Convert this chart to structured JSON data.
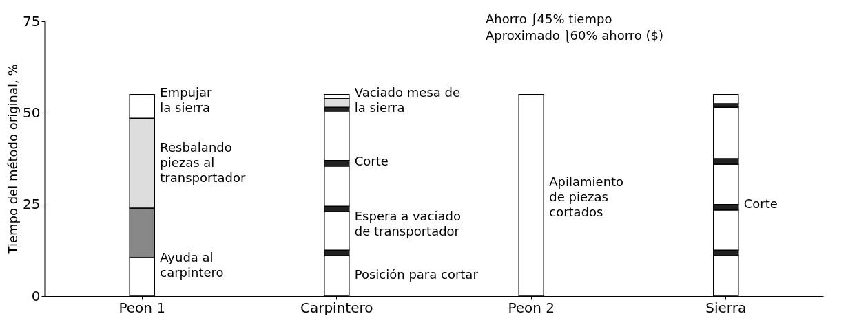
{
  "chart_data": {
    "type": "bar",
    "stacked": true,
    "ylabel": "Tiempo del método original, %",
    "categories": [
      "Peon 1",
      "Carpintero",
      "Peon 2",
      "Sierra"
    ],
    "ylim": [
      0,
      75
    ],
    "yticks": [
      0,
      25,
      50,
      75
    ],
    "series": [
      {
        "colors": [
          "#ffffff",
          "#ffffff",
          "#ffffff",
          "#ffffff"
        ],
        "values": [
          10.5,
          11,
          55,
          11
        ]
      },
      {
        "colors": [
          "#888888",
          "#222222",
          "#ffffff",
          "#222222"
        ],
        "values": [
          13.5,
          1.5,
          null,
          1.5
        ]
      },
      {
        "colors": [
          "#dddddd",
          "#ffffff",
          "#ffffff",
          "#ffffff"
        ],
        "values": [
          24.5,
          10.5,
          null,
          11
        ]
      },
      {
        "colors": [
          "#ffffff",
          "#222222",
          "#ffffff",
          "#222222"
        ],
        "values": [
          6.5,
          1.5,
          null,
          1.5
        ]
      },
      {
        "colors": [
          "#ffffff",
          "#ffffff",
          "#ffffff",
          "#ffffff"
        ],
        "values": [
          null,
          11,
          null,
          11
        ]
      },
      {
        "colors": [
          "#ffffff",
          "#222222",
          "#ffffff",
          "#222222"
        ],
        "values": [
          null,
          1.5,
          null,
          1.5
        ]
      },
      {
        "colors": [
          "#ffffff",
          "#ffffff",
          "#ffffff",
          "#ffffff"
        ],
        "values": [
          null,
          13.5,
          null,
          14
        ]
      },
      {
        "colors": [
          "#ffffff",
          "#222222",
          "#ffffff",
          "#222222"
        ],
        "values": [
          null,
          1,
          null,
          1
        ]
      },
      {
        "colors": [
          "#ffffff",
          "#dddddd",
          "#ffffff",
          "#ffffff"
        ],
        "values": [
          null,
          2.5,
          null,
          2.5
        ]
      },
      {
        "colors": [
          "#ffffff",
          "#ffffff",
          "#ffffff",
          "#ffffff"
        ],
        "values": [
          null,
          1,
          null,
          null
        ]
      }
    ],
    "annotations": [
      "Ahorro ⎰45% tiempo",
      "Aproximado ⎱60% ahorro ($)",
      "Empujar\nla sierra",
      "Resbalando\npiezas al\ntransportador",
      "Espera a vaciado\nde transportador",
      "Ayuda al\ncarpintero",
      "Vaciado mesa de\nla sierra",
      "Corte",
      "Posición para cortar",
      "Apilamiento\nde piezas\ncortados",
      "Corte"
    ]
  }
}
